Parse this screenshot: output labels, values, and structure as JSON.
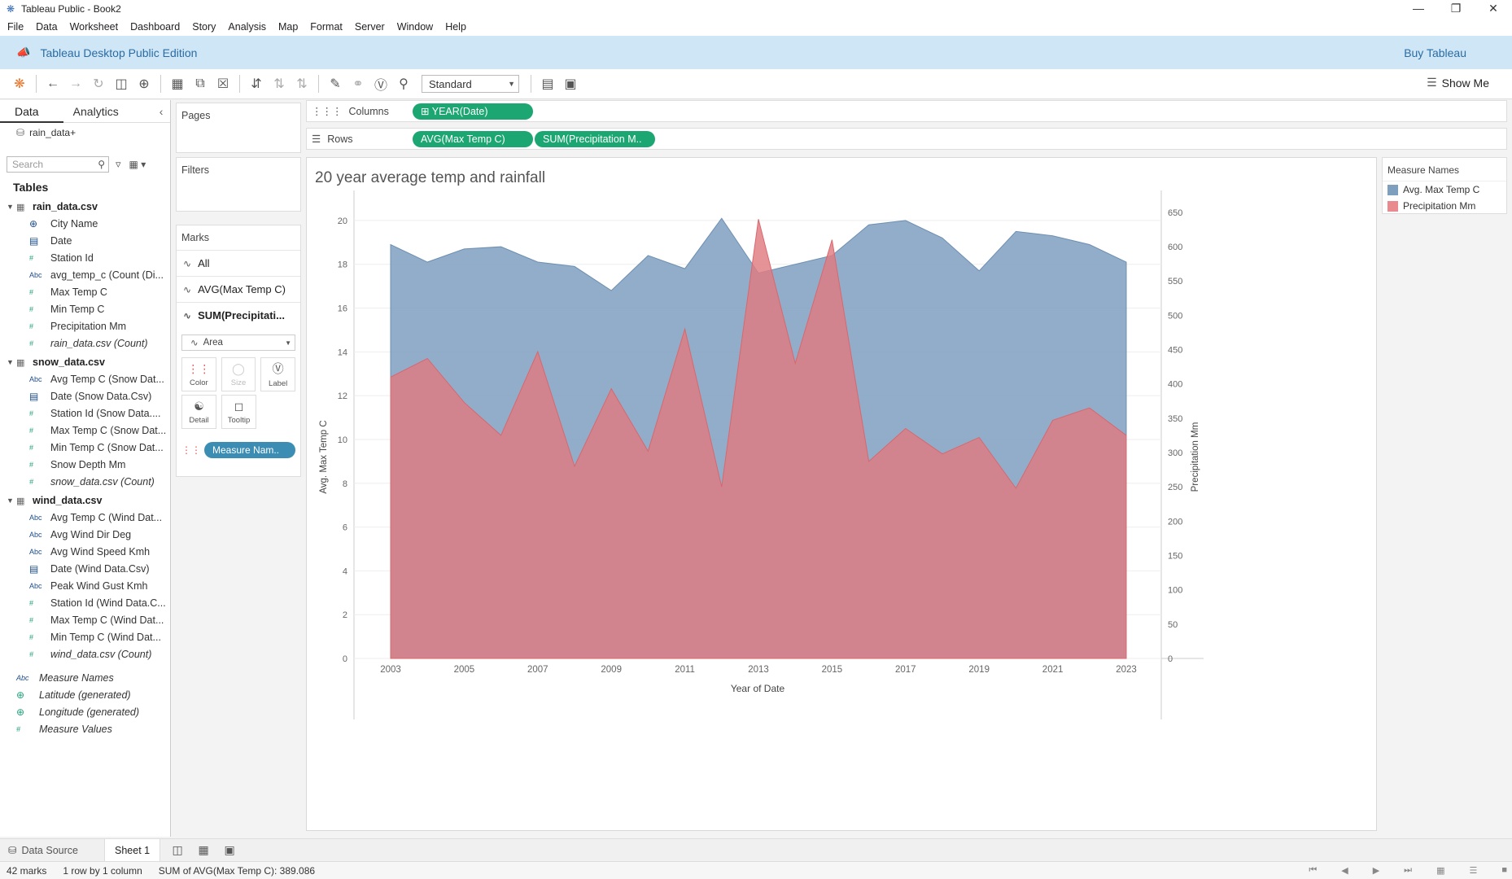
{
  "window": {
    "title": "Tableau Public - Book2",
    "controls": [
      "—",
      "❐",
      "✕"
    ]
  },
  "menu": [
    "File",
    "Data",
    "Worksheet",
    "Dashboard",
    "Story",
    "Analysis",
    "Map",
    "Format",
    "Server",
    "Window",
    "Help"
  ],
  "banner": {
    "label": "Tableau Desktop Public Edition",
    "buy": "Buy Tableau"
  },
  "toolbar": {
    "fit_select": "Standard",
    "show_me": "Show Me"
  },
  "left": {
    "tab_data": "Data",
    "tab_analytics": "Analytics",
    "datasource": "rain_data+",
    "search_placeholder": "Search",
    "tables_heading": "Tables",
    "tables": [
      {
        "name": "rain_data.csv",
        "fields": [
          {
            "type": "geo",
            "name": "City Name"
          },
          {
            "type": "date",
            "name": "Date"
          },
          {
            "type": "num",
            "name": "Station Id"
          },
          {
            "type": "abc",
            "name": "avg_temp_c (Count (Di..."
          },
          {
            "type": "num",
            "name": "Max Temp C"
          },
          {
            "type": "num",
            "name": "Min Temp C"
          },
          {
            "type": "num",
            "name": "Precipitation Mm"
          },
          {
            "type": "num",
            "name": "rain_data.csv (Count)",
            "italic": true
          }
        ]
      },
      {
        "name": "snow_data.csv",
        "fields": [
          {
            "type": "abc",
            "name": "Avg Temp C (Snow Dat..."
          },
          {
            "type": "date",
            "name": "Date (Snow Data.Csv)"
          },
          {
            "type": "num",
            "name": "Station Id (Snow Data...."
          },
          {
            "type": "num",
            "name": "Max Temp C (Snow Dat..."
          },
          {
            "type": "num",
            "name": "Min Temp C (Snow Dat..."
          },
          {
            "type": "num",
            "name": "Snow Depth Mm"
          },
          {
            "type": "num",
            "name": "snow_data.csv (Count)",
            "italic": true
          }
        ]
      },
      {
        "name": "wind_data.csv",
        "fields": [
          {
            "type": "abc",
            "name": "Avg Temp C (Wind Dat..."
          },
          {
            "type": "abc",
            "name": "Avg Wind Dir Deg"
          },
          {
            "type": "abc",
            "name": "Avg Wind Speed Kmh"
          },
          {
            "type": "date",
            "name": "Date (Wind Data.Csv)"
          },
          {
            "type": "abc",
            "name": "Peak Wind Gust Kmh"
          },
          {
            "type": "num",
            "name": "Station Id (Wind Data.C..."
          },
          {
            "type": "num",
            "name": "Max Temp C (Wind Dat..."
          },
          {
            "type": "num",
            "name": "Min Temp C (Wind Dat..."
          },
          {
            "type": "num",
            "name": "wind_data.csv (Count)",
            "italic": true
          }
        ]
      }
    ],
    "extra_fields": [
      {
        "type": "abc",
        "name": "Measure Names"
      },
      {
        "type": "geo",
        "name": "Latitude (generated)"
      },
      {
        "type": "geo",
        "name": "Longitude (generated)"
      },
      {
        "type": "num",
        "name": "Measure Values"
      }
    ]
  },
  "cards": {
    "pages": "Pages",
    "filters": "Filters",
    "marks": "Marks",
    "marks_rows": [
      "All",
      "AVG(Max Temp C)",
      "SUM(Precipitati..."
    ],
    "mark_type": "Area",
    "mark_buttons": [
      "Color",
      "Size",
      "Label",
      "Detail",
      "Tooltip"
    ],
    "color_pill": "Measure Nam.."
  },
  "shelves": {
    "columns_label": "Columns",
    "rows_label": "Rows",
    "columns_pill": "YEAR(Date)",
    "rows_pills": [
      "AVG(Max Temp C)",
      "SUM(Precipitation M.."
    ]
  },
  "legend": {
    "title": "Measure Names",
    "items": [
      {
        "label": "Avg. Max Temp C",
        "color": "#7f9fbf"
      },
      {
        "label": "Precipitation Mm",
        "color": "#e98a8f"
      }
    ]
  },
  "colors": {
    "pill_green": "#1ba672",
    "temp_area": "#7f9fbf",
    "precip_area": "#e07b81",
    "accent": "#2b6ca3"
  },
  "chart_data": {
    "type": "area",
    "title": "20 year average temp and rainfall",
    "xlabel": "Year of Date",
    "ylabel_left": "Avg. Max Temp C",
    "ylabel_right": "Precipitation Mm",
    "x": [
      2003,
      2004,
      2005,
      2006,
      2007,
      2008,
      2009,
      2010,
      2011,
      2012,
      2013,
      2014,
      2015,
      2016,
      2017,
      2018,
      2019,
      2020,
      2021,
      2022,
      2023
    ],
    "x_ticks": [
      2003,
      2005,
      2007,
      2009,
      2011,
      2013,
      2015,
      2017,
      2019,
      2021,
      2023
    ],
    "ylim_left": [
      0,
      21
    ],
    "yticks_left": [
      0,
      2,
      4,
      6,
      8,
      10,
      12,
      14,
      16,
      18,
      20
    ],
    "ylim_right": [
      0,
      670
    ],
    "yticks_right": [
      0,
      50,
      100,
      150,
      200,
      250,
      300,
      350,
      400,
      450,
      500,
      550,
      600,
      650
    ],
    "series": [
      {
        "name": "Avg. Max Temp C",
        "axis": "left",
        "values": [
          18.9,
          18.1,
          18.7,
          18.8,
          18.1,
          17.9,
          16.8,
          18.4,
          17.8,
          20.1,
          17.6,
          18.0,
          18.4,
          19.8,
          20.0,
          19.2,
          17.7,
          19.5,
          19.3,
          18.9,
          18.1
        ]
      },
      {
        "name": "Precipitation Mm",
        "axis": "right",
        "values": [
          410,
          437,
          373,
          325,
          447,
          280,
          393,
          302,
          480,
          250,
          640,
          430,
          610,
          287,
          335,
          298,
          322,
          248,
          347,
          365,
          325
        ]
      }
    ],
    "grid": true
  },
  "bottom": {
    "data_source": "Data Source",
    "sheet": "Sheet 1"
  },
  "status": {
    "marks": "42 marks",
    "dims": "1 row by 1 column",
    "sum": "SUM of AVG(Max Temp C): 389.086"
  }
}
